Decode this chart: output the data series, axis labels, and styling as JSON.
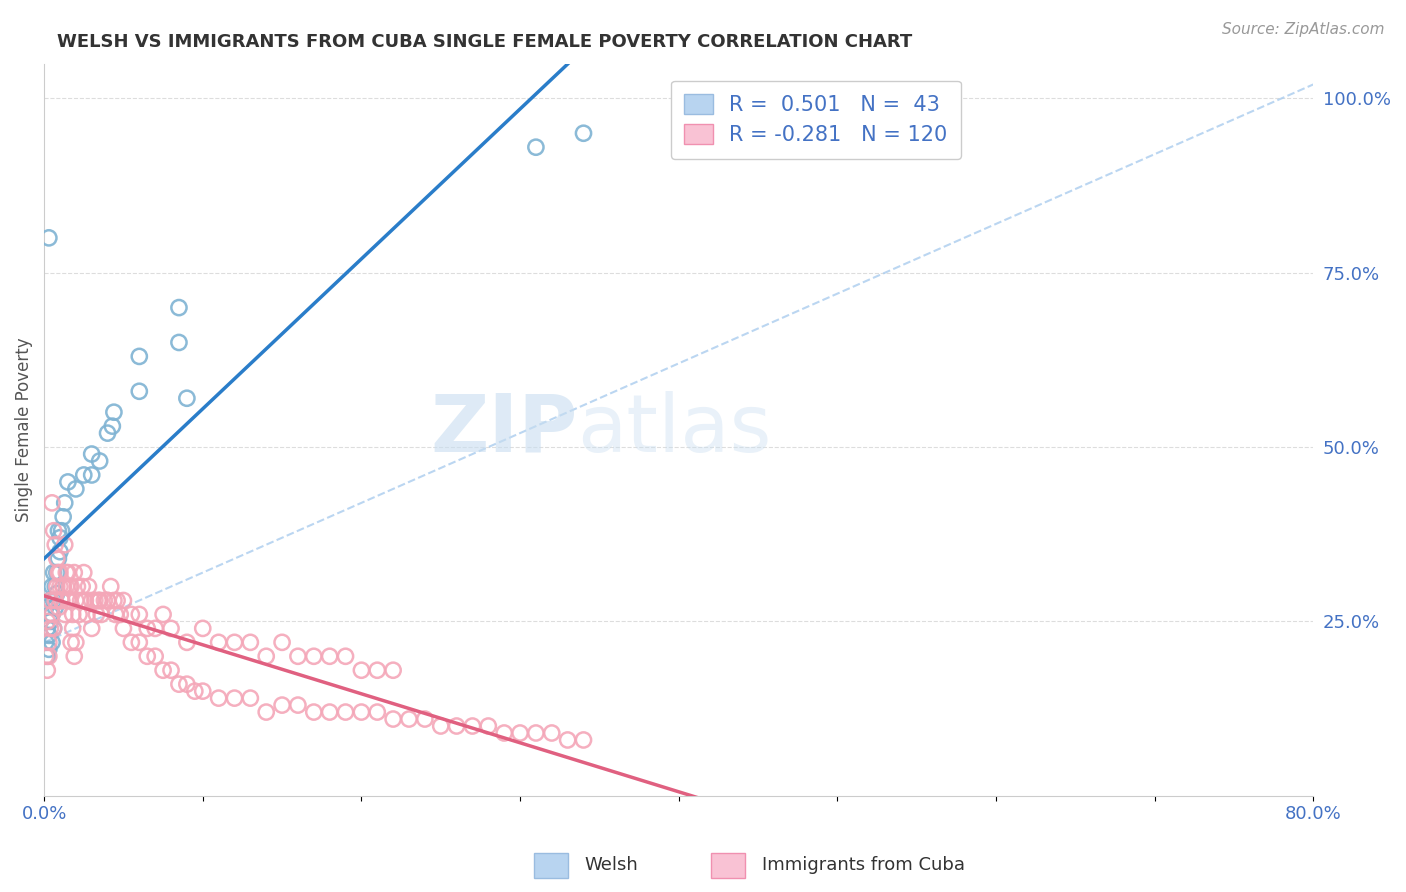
{
  "title": "WELSH VS IMMIGRANTS FROM CUBA SINGLE FEMALE POVERTY CORRELATION CHART",
  "source": "Source: ZipAtlas.com",
  "ylabel": "Single Female Poverty",
  "right_yticks": [
    "100.0%",
    "75.0%",
    "50.0%",
    "25.0%"
  ],
  "right_ytick_vals": [
    1.0,
    0.75,
    0.5,
    0.25
  ],
  "watermark_zip": "ZIP",
  "watermark_atlas": "atlas",
  "legend_welsh_R": "0.501",
  "legend_welsh_N": "43",
  "legend_cuba_R": "-0.281",
  "legend_cuba_N": "120",
  "welsh_color": "#7fb3d3",
  "welsh_edge": "#5a9ec9",
  "cuba_color": "#f4a7b8",
  "cuba_edge": "#f080a0",
  "welsh_line_color": "#2a7dc9",
  "cuba_line_color": "#e06080",
  "dash_line_color": "#aaccee",
  "background_color": "#ffffff",
  "grid_color": "#dddddd",
  "xlim": [
    0,
    0.8
  ],
  "ylim": [
    0,
    1.05
  ],
  "welsh_scatter_x": [
    0.001,
    0.001,
    0.002,
    0.002,
    0.003,
    0.003,
    0.003,
    0.004,
    0.004,
    0.004,
    0.005,
    0.005,
    0.005,
    0.006,
    0.006,
    0.006,
    0.007,
    0.007,
    0.008,
    0.008,
    0.009,
    0.009,
    0.01,
    0.01,
    0.011,
    0.012,
    0.013,
    0.015,
    0.02,
    0.025,
    0.03,
    0.03,
    0.035,
    0.04,
    0.043,
    0.044,
    0.06,
    0.06,
    0.085,
    0.085,
    0.09,
    0.31,
    0.34
  ],
  "welsh_scatter_y": [
    0.22,
    0.27,
    0.2,
    0.24,
    0.21,
    0.23,
    0.8,
    0.25,
    0.28,
    0.26,
    0.22,
    0.26,
    0.3,
    0.24,
    0.28,
    0.32,
    0.27,
    0.3,
    0.29,
    0.32,
    0.34,
    0.38,
    0.35,
    0.37,
    0.38,
    0.4,
    0.42,
    0.45,
    0.44,
    0.46,
    0.46,
    0.49,
    0.48,
    0.52,
    0.53,
    0.55,
    0.58,
    0.63,
    0.65,
    0.7,
    0.57,
    0.93,
    0.95
  ],
  "cuba_scatter_x": [
    0.002,
    0.003,
    0.004,
    0.005,
    0.006,
    0.007,
    0.008,
    0.009,
    0.01,
    0.011,
    0.012,
    0.013,
    0.014,
    0.015,
    0.016,
    0.017,
    0.018,
    0.019,
    0.02,
    0.021,
    0.022,
    0.023,
    0.024,
    0.025,
    0.026,
    0.027,
    0.028,
    0.03,
    0.032,
    0.033,
    0.034,
    0.035,
    0.036,
    0.038,
    0.04,
    0.042,
    0.044,
    0.046,
    0.048,
    0.05,
    0.055,
    0.06,
    0.065,
    0.07,
    0.075,
    0.08,
    0.09,
    0.1,
    0.11,
    0.12,
    0.13,
    0.14,
    0.15,
    0.16,
    0.17,
    0.18,
    0.19,
    0.2,
    0.21,
    0.22,
    0.001,
    0.002,
    0.003,
    0.004,
    0.005,
    0.006,
    0.007,
    0.008,
    0.009,
    0.01,
    0.011,
    0.012,
    0.013,
    0.014,
    0.015,
    0.016,
    0.017,
    0.018,
    0.019,
    0.02,
    0.025,
    0.03,
    0.035,
    0.04,
    0.045,
    0.05,
    0.055,
    0.06,
    0.065,
    0.07,
    0.075,
    0.08,
    0.085,
    0.09,
    0.095,
    0.1,
    0.11,
    0.12,
    0.13,
    0.14,
    0.15,
    0.16,
    0.17,
    0.18,
    0.19,
    0.2,
    0.21,
    0.22,
    0.23,
    0.24,
    0.25,
    0.26,
    0.27,
    0.28,
    0.29,
    0.3,
    0.31,
    0.32,
    0.33,
    0.34
  ],
  "cuba_scatter_y": [
    0.25,
    0.22,
    0.28,
    0.26,
    0.24,
    0.28,
    0.3,
    0.27,
    0.32,
    0.28,
    0.3,
    0.26,
    0.3,
    0.32,
    0.28,
    0.3,
    0.26,
    0.32,
    0.28,
    0.3,
    0.26,
    0.28,
    0.3,
    0.32,
    0.28,
    0.26,
    0.3,
    0.28,
    0.28,
    0.26,
    0.28,
    0.28,
    0.26,
    0.28,
    0.28,
    0.3,
    0.28,
    0.28,
    0.26,
    0.28,
    0.26,
    0.26,
    0.24,
    0.24,
    0.26,
    0.24,
    0.22,
    0.24,
    0.22,
    0.22,
    0.22,
    0.2,
    0.22,
    0.2,
    0.2,
    0.2,
    0.2,
    0.18,
    0.18,
    0.18,
    0.2,
    0.18,
    0.2,
    0.24,
    0.42,
    0.38,
    0.36,
    0.34,
    0.32,
    0.3,
    0.28,
    0.3,
    0.36,
    0.32,
    0.28,
    0.3,
    0.22,
    0.24,
    0.2,
    0.22,
    0.28,
    0.24,
    0.28,
    0.28,
    0.26,
    0.24,
    0.22,
    0.22,
    0.2,
    0.2,
    0.18,
    0.18,
    0.16,
    0.16,
    0.15,
    0.15,
    0.14,
    0.14,
    0.14,
    0.12,
    0.13,
    0.13,
    0.12,
    0.12,
    0.12,
    0.12,
    0.12,
    0.11,
    0.11,
    0.11,
    0.1,
    0.1,
    0.1,
    0.1,
    0.09,
    0.09,
    0.09,
    0.09,
    0.08,
    0.08
  ]
}
